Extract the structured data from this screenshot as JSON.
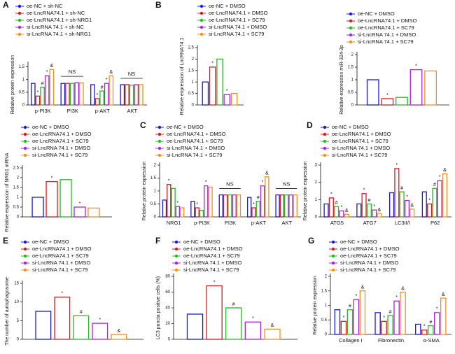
{
  "chart_data": [
    {
      "type": "bar",
      "panel": "A",
      "ylabel": "Relative protein expression",
      "categories": [
        "p-PI3K",
        "PI3K",
        "p-AKT",
        "AKT"
      ],
      "ylim": [
        0,
        1.6
      ],
      "yticks": [
        0,
        0.5,
        1,
        1.5
      ],
      "annotations": [
        {
          "text": "NS",
          "category": 1
        },
        {
          "text": "NS",
          "category": 3
        }
      ],
      "series": [
        {
          "name": "oe-NC + sh-NC",
          "color": "#1a1ad0",
          "values": [
            0.85,
            0.85,
            0.8,
            0.8
          ],
          "significance": [
            null,
            null,
            null,
            null
          ]
        },
        {
          "name": "oe-LncRNA74.1 + sh-NC",
          "color": "#e01818",
          "values": [
            0.35,
            0.85,
            0.25,
            0.8
          ],
          "significance": [
            "*",
            null,
            "*",
            null
          ]
        },
        {
          "name": "oe-LncRNA74.1 + sh-NRG1",
          "color": "#22bb22",
          "values": [
            0.7,
            0.85,
            0.55,
            0.78
          ],
          "significance": [
            "#",
            null,
            "#",
            null
          ]
        },
        {
          "name": "si-LncRNA 74.1 + sh-NC",
          "color": "#b020e0",
          "values": [
            1.15,
            0.88,
            0.85,
            0.8
          ],
          "significance": [
            "*",
            null,
            "*",
            null
          ]
        },
        {
          "name": "si-LncRNA 74.1 + sh-NRG1",
          "color": "#f09020",
          "values": [
            1.4,
            0.87,
            1.15,
            0.8
          ],
          "significance": [
            "&",
            null,
            "&",
            null
          ]
        }
      ]
    },
    {
      "type": "bar",
      "panel": "B",
      "ylabel": "Relative expression of LncRNA74.1",
      "ylim": [
        0,
        2.5
      ],
      "yticks": [
        0,
        0.5,
        1,
        1.5,
        2,
        2.5
      ],
      "series": [
        {
          "name": "oe-NC + DMSO",
          "color": "#1a1ad0",
          "values": [
            1.0
          ],
          "significance": [
            null
          ]
        },
        {
          "name": "oe-LncRNA74.1 + DMSO",
          "color": "#e01818",
          "values": [
            1.65
          ],
          "significance": [
            "*"
          ]
        },
        {
          "name": "oe-LncRNA74.1 + SC79",
          "color": "#22bb22",
          "values": [
            2.0
          ],
          "significance": [
            null
          ]
        },
        {
          "name": "si-LncRNA 74.1 + DMSO",
          "color": "#b020e0",
          "values": [
            0.45
          ],
          "significance": [
            "*"
          ]
        },
        {
          "name": "si-LncRNA 74.1 + SC79",
          "color": "#f09020",
          "values": [
            0.5
          ],
          "significance": [
            null
          ]
        }
      ]
    },
    {
      "type": "bar",
      "ylabel": "Relative expression miR-324-3p",
      "ylim": [
        0,
        2
      ],
      "yticks": [
        0,
        0.5,
        1,
        1.5,
        2
      ],
      "series": [
        {
          "name": "oe-NC + DMSO",
          "color": "#1a1ad0",
          "values": [
            1.0
          ],
          "significance": [
            null
          ]
        },
        {
          "name": "oe-LncRNA74.1 + DMSO",
          "color": "#e01818",
          "values": [
            0.25
          ],
          "significance": [
            "*"
          ]
        },
        {
          "name": "oe-LncRNA74.1 + SC79",
          "color": "#22bb22",
          "values": [
            0.3
          ],
          "significance": [
            null
          ]
        },
        {
          "name": "si-LncRNA 74.1 + DMSO",
          "color": "#b020e0",
          "values": [
            1.4
          ],
          "significance": [
            "*"
          ]
        },
        {
          "name": "si-LncRNA 74.1 + SC79",
          "color": "#f09020",
          "values": [
            1.35
          ],
          "significance": [
            null
          ]
        }
      ]
    },
    {
      "type": "bar",
      "ylabel": "Relative expression of NRG1 mRNA",
      "ylim": [
        0,
        2.5
      ],
      "yticks": [
        0,
        0.5,
        1,
        1.5,
        2,
        2.5
      ],
      "series": [
        {
          "name": "oe-NC + DMSO",
          "color": "#1a1ad0",
          "values": [
            1.0
          ],
          "significance": [
            null
          ]
        },
        {
          "name": "oe-LncRNA74.1 + DMSO",
          "color": "#e01818",
          "values": [
            1.8
          ],
          "significance": [
            "*"
          ]
        },
        {
          "name": "oe-LncRNA74.1 + SC79",
          "color": "#22bb22",
          "values": [
            1.9
          ],
          "significance": [
            null
          ]
        },
        {
          "name": "si-LncRNA 74.1 + DMSO",
          "color": "#b020e0",
          "values": [
            0.5
          ],
          "significance": [
            "*"
          ]
        },
        {
          "name": "si-LncRNA 74.1 + SC79",
          "color": "#f09020",
          "values": [
            0.45
          ],
          "significance": [
            null
          ]
        }
      ]
    },
    {
      "type": "bar",
      "panel": "C",
      "ylabel": "Relative protein expression",
      "categories": [
        "NRG1",
        "p-PI3K",
        "PI3K",
        "p-AKT",
        "AKT"
      ],
      "ylim": [
        0,
        2
      ],
      "yticks": [
        0,
        0.5,
        1,
        1.5,
        2
      ],
      "annotations": [
        {
          "text": "NS",
          "category": 2
        },
        {
          "text": "NS",
          "category": 4
        }
      ],
      "series": [
        {
          "name": "oe-NC + DMSO",
          "color": "#1a1ad0",
          "values": [
            0.65,
            0.6,
            0.85,
            0.75,
            0.85
          ],
          "significance": [
            null,
            null,
            null,
            null,
            null
          ]
        },
        {
          "name": "oe-LncRNA74.1 + DMSO",
          "color": "#e01818",
          "values": [
            1.25,
            0.35,
            0.85,
            0.35,
            0.85
          ],
          "significance": [
            "*",
            "*",
            null,
            "*",
            null
          ]
        },
        {
          "name": "oe-LncRNA74.1 + SC79",
          "color": "#22bb22",
          "values": [
            1.1,
            0.25,
            0.85,
            0.6,
            0.85
          ],
          "significance": [
            null,
            null,
            null,
            "#",
            null
          ]
        },
        {
          "name": "si-LncRNA 74.1 + DMSO",
          "color": "#b020e0",
          "values": [
            0.4,
            1.2,
            0.85,
            1.2,
            0.85
          ],
          "significance": [
            "*",
            "*",
            null,
            "*",
            null
          ]
        },
        {
          "name": "si-LncRNA 74.1 + SC79",
          "color": "#f09020",
          "values": [
            0.35,
            1.15,
            0.85,
            1.55,
            0.85
          ],
          "significance": [
            null,
            null,
            null,
            "&",
            null
          ]
        }
      ]
    },
    {
      "type": "bar",
      "panel": "D",
      "ylabel": "Relative protein expression",
      "categories": [
        "ATG5",
        "ATG7",
        "LC3II/I",
        "P62"
      ],
      "ylim": [
        0,
        3
      ],
      "yticks": [
        0,
        1,
        2,
        3
      ],
      "series": [
        {
          "name": "oe-NC + DMSO",
          "color": "#1a1ad0",
          "values": [
            0.75,
            0.75,
            1.4,
            1.45
          ],
          "significance": [
            null,
            null,
            null,
            null
          ]
        },
        {
          "name": "oe-LncRNA74.1 + DMSO",
          "color": "#e01818",
          "values": [
            1.1,
            1.35,
            2.8,
            0.75
          ],
          "significance": [
            "*",
            "*",
            "*",
            "*"
          ]
        },
        {
          "name": "oe-LncRNA74.1 + SC79",
          "color": "#22bb22",
          "values": [
            0.6,
            0.75,
            1.45,
            1.65
          ],
          "significance": [
            "#",
            "#",
            "#",
            "#"
          ]
        },
        {
          "name": "si-LncRNA 74.1 + DMSO",
          "color": "#b020e0",
          "values": [
            0.35,
            0.4,
            0.95,
            2.1
          ],
          "significance": [
            "*",
            "*",
            "*",
            "*"
          ]
        },
        {
          "name": "si-LncRNA 74.1 + SC79",
          "color": "#f09020",
          "values": [
            0.15,
            0.2,
            0.45,
            2.5
          ],
          "significance": [
            "&",
            "&",
            "&",
            "&"
          ]
        }
      ]
    },
    {
      "type": "bar",
      "panel": "E",
      "ylabel": "The number of autophagosome",
      "ylim": [
        0,
        15
      ],
      "yticks": [
        0,
        5,
        10,
        15
      ],
      "series": [
        {
          "name": "oe-NC + DMSO",
          "color": "#1a1ad0",
          "values": [
            7.5
          ],
          "significance": [
            null
          ]
        },
        {
          "name": "oe-LncRNA74.1 + DMSO",
          "color": "#e01818",
          "values": [
            11.3
          ],
          "significance": [
            "*"
          ]
        },
        {
          "name": "oe-LncRNA74.1 + SC79",
          "color": "#22bb22",
          "values": [
            6.3
          ],
          "significance": [
            "#"
          ]
        },
        {
          "name": "si-LncRNA 74.1 + DMSO",
          "color": "#b020e0",
          "values": [
            4.3
          ],
          "significance": [
            "*"
          ]
        },
        {
          "name": "si-LncRNA 74.1 + SC79",
          "color": "#f09020",
          "values": [
            1.3
          ],
          "significance": [
            "&"
          ]
        }
      ]
    },
    {
      "type": "bar",
      "panel": "F",
      "ylabel": "LC3 puncta positive cells (%)",
      "ylim": [
        0,
        80
      ],
      "yticks": [
        0,
        20,
        40,
        60,
        80
      ],
      "series": [
        {
          "name": "oe-NC + DMSO",
          "color": "#1a1ad0",
          "values": [
            32
          ],
          "significance": [
            null
          ]
        },
        {
          "name": "oe-LncRNA74.1 + DMSO",
          "color": "#e01818",
          "values": [
            68
          ],
          "significance": [
            "*"
          ]
        },
        {
          "name": "oe-LncRNA74.1 + SC79",
          "color": "#22bb22",
          "values": [
            40
          ],
          "significance": [
            "#"
          ]
        },
        {
          "name": "si-LncRNA 74.1 + DMSO",
          "color": "#b020e0",
          "values": [
            22
          ],
          "significance": [
            "*"
          ]
        },
        {
          "name": "si-LncRNA 74.1 + SC79",
          "color": "#f09020",
          "values": [
            13
          ],
          "significance": [
            "&"
          ]
        }
      ]
    },
    {
      "type": "bar",
      "panel": "G",
      "ylabel": "Relative protein expression",
      "categories": [
        "Collagen I",
        "Fibronectin",
        "α-SMA"
      ],
      "ylim": [
        0,
        2
      ],
      "yticks": [
        0,
        0.5,
        1,
        1.5,
        2
      ],
      "series": [
        {
          "name": "oe-NC + DMSO",
          "color": "#1a1ad0",
          "values": [
            0.85,
            0.75,
            0.35
          ],
          "significance": [
            null,
            null,
            null
          ]
        },
        {
          "name": "oe-LncRNA74.1 + DMSO",
          "color": "#e01818",
          "values": [
            0.45,
            0.45,
            0.15
          ],
          "significance": [
            "*",
            "*",
            "*"
          ]
        },
        {
          "name": "oe-LncRNA74.1 + SC79",
          "color": "#22bb22",
          "values": [
            0.85,
            0.65,
            0.3
          ],
          "significance": [
            "#",
            "#",
            "#"
          ]
        },
        {
          "name": "si-LncRNA 74.1 + DMSO",
          "color": "#b020e0",
          "values": [
            1.2,
            1.15,
            0.75
          ],
          "significance": [
            "*",
            "*",
            "*"
          ]
        },
        {
          "name": "si-LncRNA 74.1 + SC79",
          "color": "#f09020",
          "values": [
            1.5,
            1.45,
            1.25
          ],
          "significance": [
            "&",
            "&",
            "&"
          ]
        }
      ]
    }
  ]
}
